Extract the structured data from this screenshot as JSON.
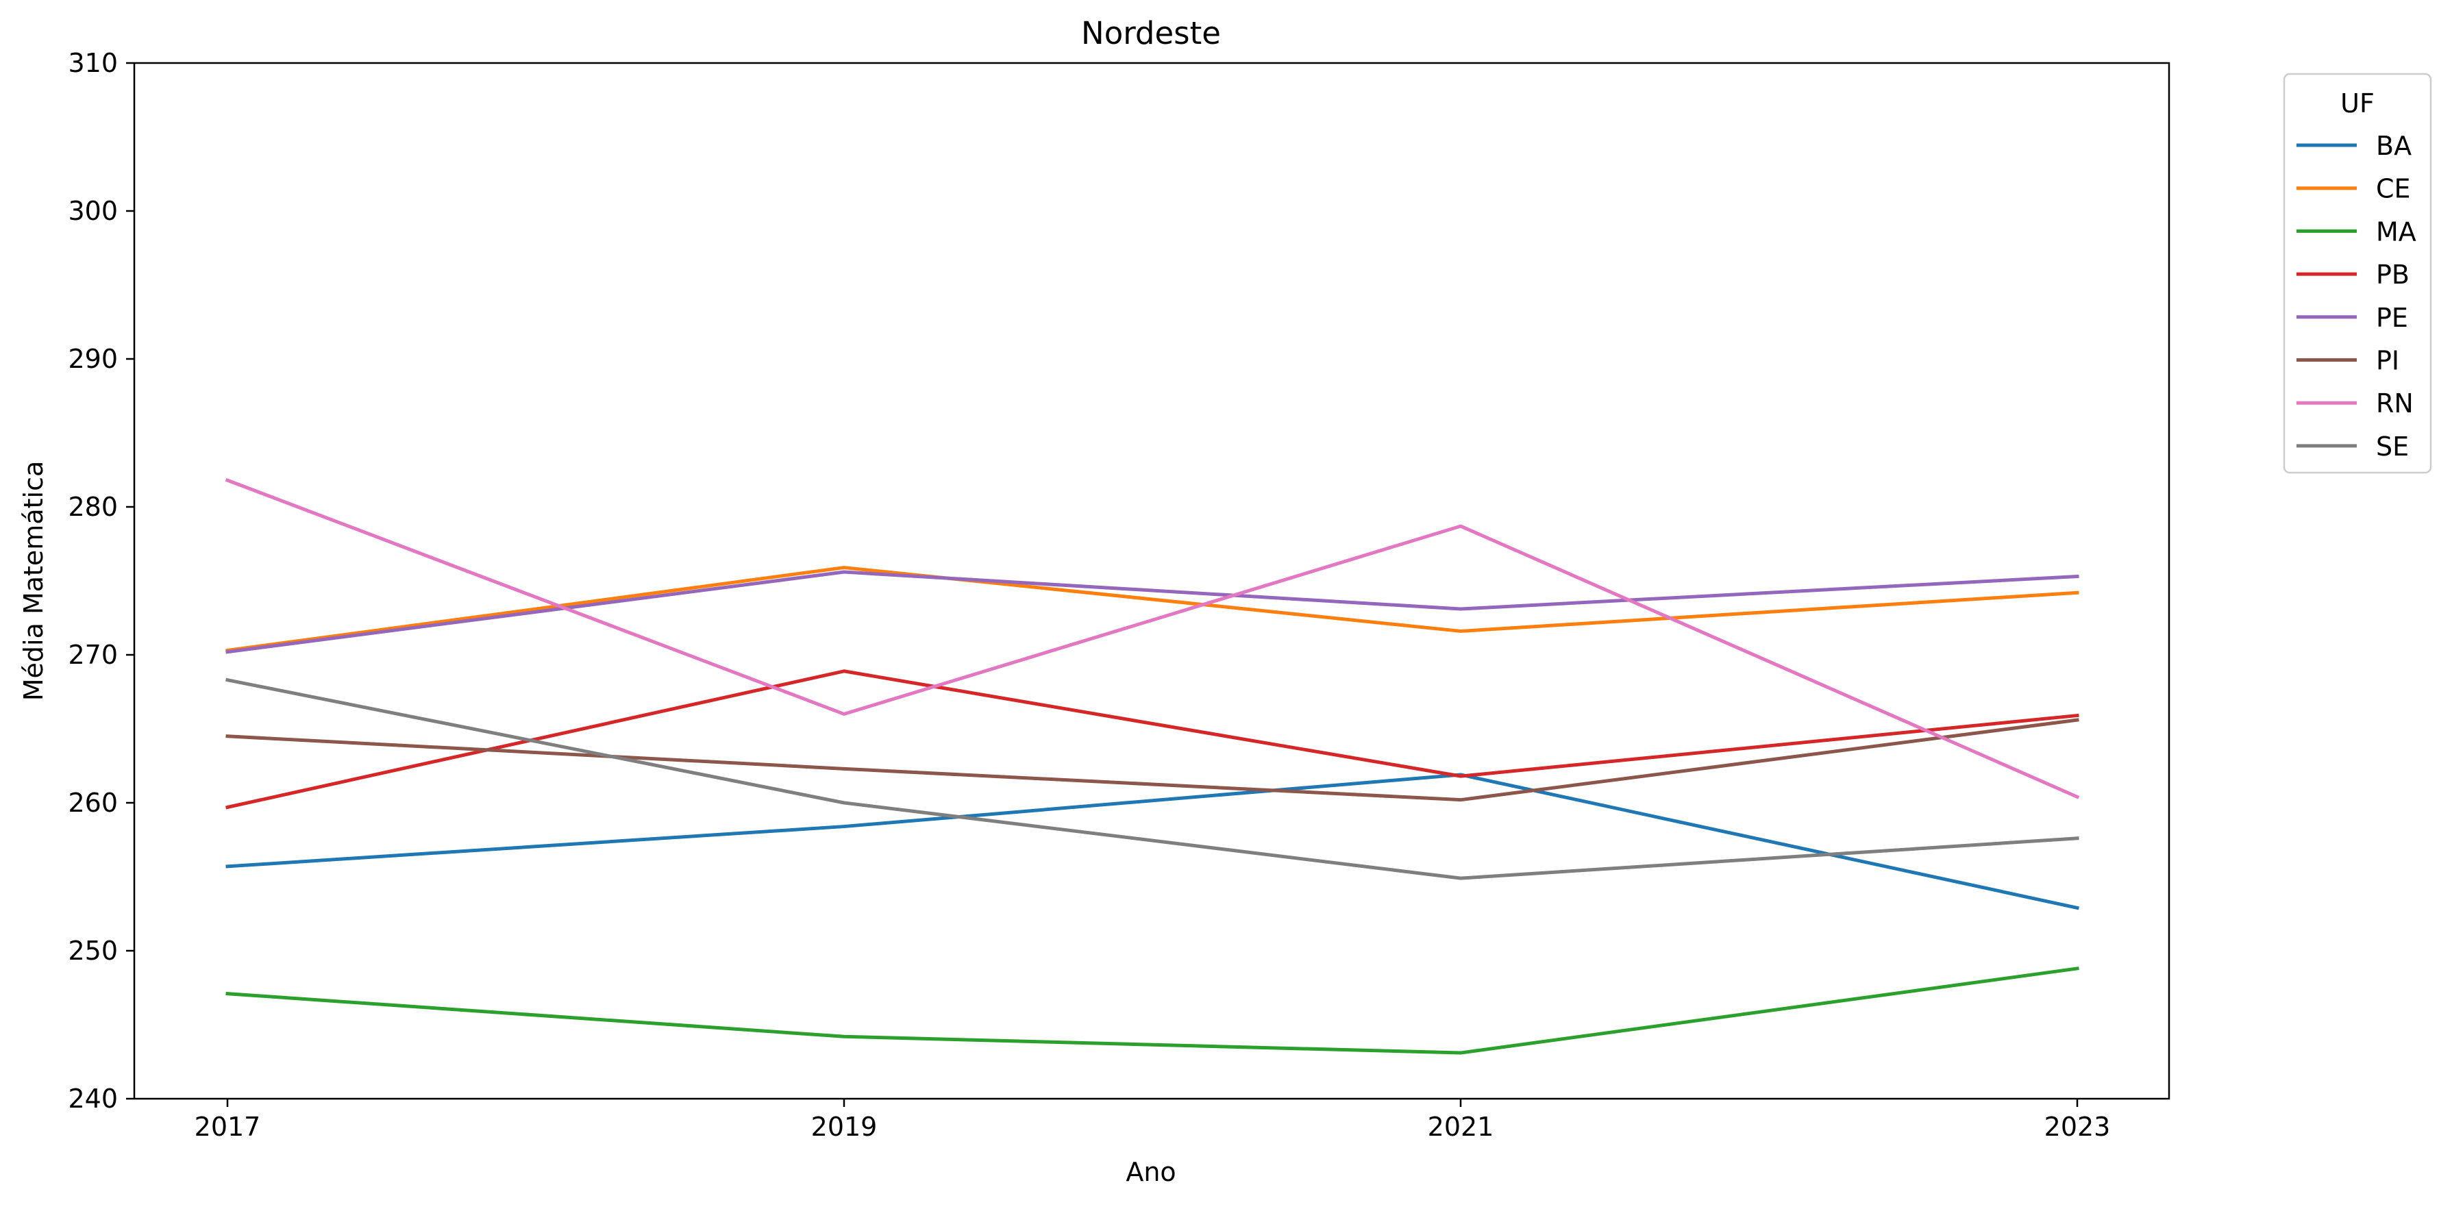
{
  "chart_data": {
    "type": "line",
    "title": "Nordeste",
    "xlabel": "Ano",
    "ylabel": "Média Matemática",
    "x": [
      2017,
      2019,
      2021,
      2023
    ],
    "x_tick_labels": [
      "2017",
      "2019",
      "2021",
      "2023"
    ],
    "ylim": [
      240,
      310
    ],
    "y_ticks": [
      240,
      250,
      260,
      270,
      280,
      290,
      300,
      310
    ],
    "grid": false,
    "legend": {
      "title": "UF",
      "position": "outside-top-right"
    },
    "series": [
      {
        "name": "BA",
        "color": "#1f77b4",
        "values": [
          255.7,
          258.4,
          261.9,
          252.9
        ]
      },
      {
        "name": "CE",
        "color": "#ff7f0e",
        "values": [
          270.3,
          275.9,
          271.6,
          274.2
        ]
      },
      {
        "name": "MA",
        "color": "#2ca02c",
        "values": [
          247.1,
          244.2,
          243.1,
          248.8
        ]
      },
      {
        "name": "PB",
        "color": "#d62728",
        "values": [
          259.7,
          268.9,
          261.8,
          265.9
        ]
      },
      {
        "name": "PE",
        "color": "#9467bd",
        "values": [
          270.2,
          275.6,
          273.1,
          275.3
        ]
      },
      {
        "name": "PI",
        "color": "#8c564b",
        "values": [
          264.5,
          262.3,
          260.2,
          265.6
        ]
      },
      {
        "name": "RN",
        "color": "#e377c2",
        "values": [
          281.8,
          266.0,
          278.7,
          260.4
        ]
      },
      {
        "name": "SE",
        "color": "#7f7f7f",
        "values": [
          268.3,
          260.0,
          254.9,
          257.6
        ]
      }
    ]
  }
}
